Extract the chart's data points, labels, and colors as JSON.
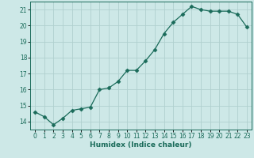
{
  "x": [
    0,
    1,
    2,
    3,
    4,
    5,
    6,
    7,
    8,
    9,
    10,
    11,
    12,
    13,
    14,
    15,
    16,
    17,
    18,
    19,
    20,
    21,
    22,
    23
  ],
  "y": [
    14.6,
    14.3,
    13.8,
    14.2,
    14.7,
    14.8,
    14.9,
    16.0,
    16.1,
    16.5,
    17.2,
    17.2,
    17.8,
    18.5,
    19.5,
    20.2,
    20.7,
    21.2,
    21.0,
    20.9,
    20.9,
    20.9,
    20.7,
    19.9
  ],
  "line_color": "#1a6b5a",
  "marker": "D",
  "markersize": 2.5,
  "bg_color": "#cde8e7",
  "grid_color": "#b0d0ce",
  "xlabel": "Humidex (Indice chaleur)",
  "ylabel": "",
  "xlim": [
    -0.5,
    23.5
  ],
  "ylim": [
    13.5,
    21.5
  ],
  "yticks": [
    14,
    15,
    16,
    17,
    18,
    19,
    20,
    21
  ],
  "xticks": [
    0,
    1,
    2,
    3,
    4,
    5,
    6,
    7,
    8,
    9,
    10,
    11,
    12,
    13,
    14,
    15,
    16,
    17,
    18,
    19,
    20,
    21,
    22,
    23
  ],
  "label_fontsize": 6.5,
  "tick_fontsize": 5.5
}
